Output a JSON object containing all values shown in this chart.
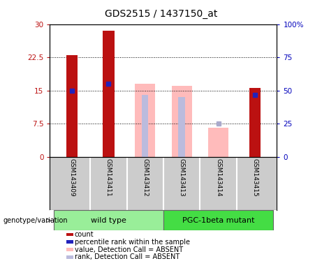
{
  "title": "GDS2515 / 1437150_at",
  "samples": [
    "GSM143409",
    "GSM143411",
    "GSM143412",
    "GSM143413",
    "GSM143414",
    "GSM143415"
  ],
  "left_ylim": [
    0,
    30
  ],
  "right_ylim": [
    0,
    100
  ],
  "left_yticks": [
    0,
    7.5,
    15,
    22.5,
    30
  ],
  "right_yticks": [
    0,
    25,
    50,
    75,
    100
  ],
  "right_yticklabels": [
    "0",
    "25",
    "50",
    "75",
    "100%"
  ],
  "count_bars": [
    23.0,
    28.5,
    0,
    0,
    0,
    15.5
  ],
  "count_color": "#bb1111",
  "percentile_bars": [
    15.0,
    16.5,
    0,
    0,
    0,
    14.0
  ],
  "percentile_color": "#2222bb",
  "absent_value_bars": [
    0,
    0,
    16.5,
    16.0,
    6.5,
    0
  ],
  "absent_value_color": "#ffbbbb",
  "absent_rank_bars": [
    0,
    0,
    14.0,
    13.5,
    0,
    0
  ],
  "absent_rank_color": "#bbbbdd",
  "absent_rank_point": [
    0,
    0,
    0,
    0,
    7.5,
    0
  ],
  "absent_rank_point_color": "#aaaacc",
  "group1_label": "wild type",
  "group2_label": "PGC-1beta mutant",
  "group1_color": "#99ee99",
  "group2_color": "#44dd44",
  "xlabel_label": "genotype/variation",
  "legend_items": [
    {
      "label": "count",
      "color": "#bb1111"
    },
    {
      "label": "percentile rank within the sample",
      "color": "#2222bb"
    },
    {
      "label": "value, Detection Call = ABSENT",
      "color": "#ffbbbb"
    },
    {
      "label": "rank, Detection Call = ABSENT",
      "color": "#bbbbdd"
    }
  ],
  "bg_color": "#cccccc",
  "plot_bg": "#ffffff",
  "title_fontsize": 10,
  "tick_fontsize": 7.5,
  "label_fontsize": 7.5
}
